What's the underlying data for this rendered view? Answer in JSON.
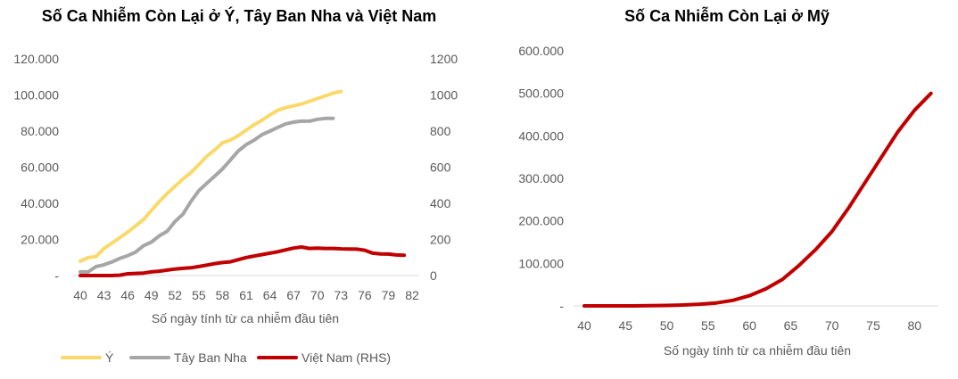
{
  "chart_data": [
    {
      "type": "line",
      "title": "Số Ca Nhiễm Còn Lại ở Ý, Tây Ban Nha và Việt Nam",
      "xlabel": "Số ngày tính từ ca nhiễm đầu tiên",
      "xlim": [
        40,
        82
      ],
      "xticks": [
        "40",
        "43",
        "46",
        "49",
        "52",
        "55",
        "58",
        "61",
        "64",
        "67",
        "70",
        "73",
        "76",
        "79",
        "82"
      ],
      "ylim_left": [
        0,
        120000
      ],
      "yticks_left": [
        "-",
        "20.000",
        "40.000",
        "60.000",
        "80.000",
        "100.000",
        "120.000"
      ],
      "ylim_right": [
        0,
        1200
      ],
      "yticks_right": [
        "0",
        "200",
        "400",
        "600",
        "800",
        "1000",
        "1200"
      ],
      "legend": "bottom",
      "series": [
        {
          "name": "Ý",
          "axis": "left",
          "color": "#FAD96B",
          "x": [
            40,
            41,
            42,
            43,
            44,
            45,
            46,
            47,
            48,
            49,
            50,
            51,
            52,
            53,
            54,
            55,
            56,
            57,
            58,
            59,
            60,
            61,
            62,
            63,
            64,
            65,
            66,
            67,
            68,
            69,
            70,
            71,
            72,
            73
          ],
          "values": [
            8000,
            10000,
            10500,
            15000,
            18000,
            21000,
            24000,
            27500,
            31000,
            36000,
            41000,
            45500,
            49500,
            53500,
            57000,
            61500,
            66000,
            69500,
            73500,
            75000,
            77500,
            80500,
            83500,
            86000,
            89000,
            91500,
            93000,
            94000,
            95000,
            96500,
            98000,
            99500,
            101000,
            102000
          ]
        },
        {
          "name": "Tây Ban Nha",
          "axis": "left",
          "color": "#A6A6A6",
          "x": [
            40,
            41,
            42,
            43,
            44,
            45,
            46,
            47,
            48,
            49,
            50,
            51,
            52,
            53,
            54,
            55,
            56,
            57,
            58,
            59,
            60,
            61,
            62,
            63,
            64,
            65,
            66,
            67,
            68,
            69,
            70,
            71,
            72
          ],
          "values": [
            2000,
            2000,
            5000,
            6000,
            7500,
            9500,
            11000,
            13000,
            16500,
            18500,
            22000,
            24500,
            30000,
            34000,
            41000,
            47000,
            51000,
            55000,
            59000,
            64000,
            69000,
            72500,
            75000,
            78000,
            80000,
            82000,
            84000,
            85000,
            85500,
            85500,
            86500,
            87000,
            87000
          ]
        },
        {
          "name": "Việt Nam (RHS)",
          "axis": "right",
          "color": "#C00000",
          "x": [
            40,
            41,
            42,
            43,
            44,
            45,
            46,
            47,
            48,
            49,
            50,
            51,
            52,
            53,
            54,
            55,
            56,
            57,
            58,
            59,
            60,
            61,
            62,
            63,
            64,
            65,
            66,
            67,
            68,
            69,
            70,
            71,
            72,
            73,
            74,
            75,
            76,
            77,
            78,
            79,
            80,
            81
          ],
          "values": [
            0,
            0,
            0,
            0,
            0,
            2,
            10,
            12,
            14,
            20,
            24,
            30,
            36,
            40,
            43,
            50,
            58,
            66,
            72,
            76,
            88,
            100,
            108,
            116,
            124,
            132,
            142,
            152,
            158,
            150,
            152,
            150,
            150,
            148,
            147,
            146,
            140,
            124,
            120,
            119,
            114,
            112
          ]
        }
      ]
    },
    {
      "type": "line",
      "title": "Số Ca Nhiễm Còn Lại ở Mỹ",
      "xlabel": "Số ngày tính từ ca nhiễm đầu tiên",
      "xlim": [
        40,
        83
      ],
      "xticks": [
        "40",
        "45",
        "50",
        "55",
        "60",
        "65",
        "70",
        "75",
        "80"
      ],
      "ylim": [
        0,
        600000
      ],
      "yticks": [
        "-",
        "100.000",
        "200.000",
        "300.000",
        "400.000",
        "500.000",
        "600.000"
      ],
      "series": [
        {
          "name": "Mỹ",
          "color": "#C00000",
          "x": [
            40,
            42,
            44,
            46,
            48,
            50,
            52,
            54,
            56,
            58,
            60,
            62,
            64,
            66,
            68,
            70,
            72,
            74,
            76,
            78,
            80,
            82
          ],
          "values": [
            0,
            0,
            0,
            0,
            500,
            1000,
            2000,
            4000,
            7000,
            13000,
            24000,
            40000,
            62000,
            95000,
            132000,
            175000,
            230000,
            290000,
            350000,
            410000,
            460000,
            500000
          ]
        }
      ]
    }
  ]
}
